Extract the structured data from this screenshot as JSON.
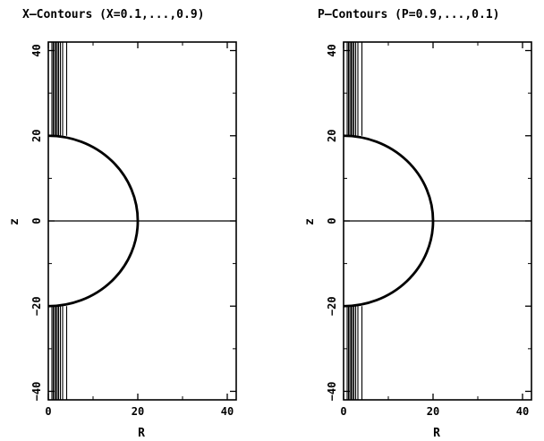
{
  "chart_data": [
    {
      "type": "contour",
      "title": "X–Contours   (X=0.1,...,0.9)",
      "xlabel": "R",
      "ylabel": "z",
      "xlim": [
        0,
        42
      ],
      "ylim": [
        -42,
        42
      ],
      "xticks": [
        "0",
        "20",
        "40"
      ],
      "yticks": [
        "−40",
        "−20",
        "0",
        "20",
        "40"
      ],
      "boundary": {
        "shape": "semicircle",
        "radius": 20
      },
      "contour_levels": [
        0.1,
        0.2,
        0.3,
        0.4,
        0.5,
        0.6,
        0.7,
        0.8,
        0.9
      ],
      "contour_R": [
        0.8,
        1.1,
        1.4,
        1.7,
        2.0,
        2.3,
        2.7,
        3.2,
        4.1
      ],
      "contour_z_min": 20
    },
    {
      "type": "contour",
      "title": "P–Contours   (P=0.9,...,0.1)",
      "xlabel": "R",
      "ylabel": "z",
      "xlim": [
        0,
        42
      ],
      "ylim": [
        -42,
        42
      ],
      "xticks": [
        "0",
        "20",
        "40"
      ],
      "yticks": [
        "−40",
        "−20",
        "0",
        "20",
        "40"
      ],
      "boundary": {
        "shape": "semicircle",
        "radius": 20
      },
      "contour_levels": [
        0.9,
        0.8,
        0.7,
        0.6,
        0.5,
        0.4,
        0.3,
        0.2,
        0.1
      ],
      "contour_R": [
        0.8,
        1.1,
        1.4,
        1.7,
        2.0,
        2.3,
        2.7,
        3.2,
        4.1
      ],
      "contour_z_min": 20
    }
  ]
}
